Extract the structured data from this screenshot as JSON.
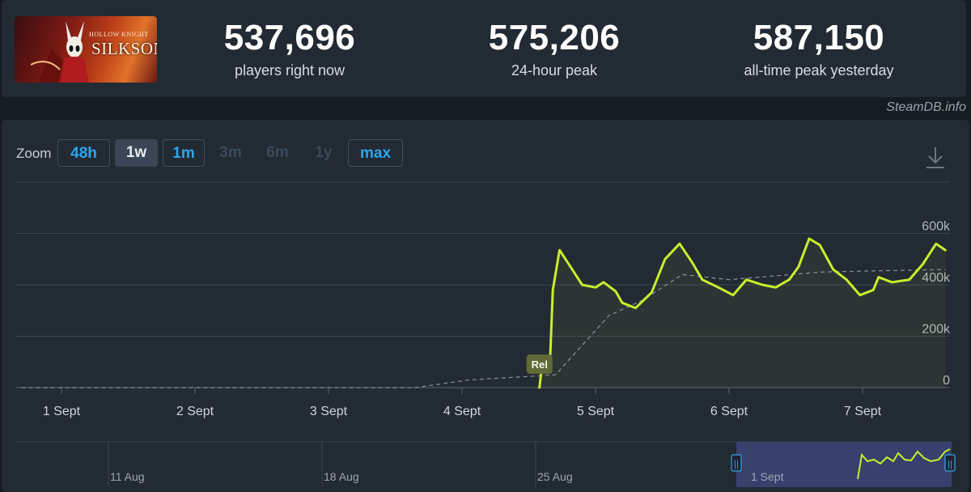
{
  "header": {
    "game_logo": {
      "title_small": "HOLLOW KNIGHT",
      "title_main": "SILKSONG"
    },
    "stats": [
      {
        "value": "537,696",
        "label": "players right now"
      },
      {
        "value": "575,206",
        "label": "24-hour peak"
      },
      {
        "value": "587,150",
        "label": "all-time peak yesterday"
      }
    ],
    "source": "SteamDB.info"
  },
  "zoom": {
    "label": "Zoom",
    "options": [
      {
        "label": "48h",
        "state": "enabled"
      },
      {
        "label": "1w",
        "state": "selected"
      },
      {
        "label": "1m",
        "state": "enabled"
      },
      {
        "label": "3m",
        "state": "disabled"
      },
      {
        "label": "6m",
        "state": "disabled"
      },
      {
        "label": "1y",
        "state": "disabled"
      },
      {
        "label": "max",
        "state": "enabled"
      }
    ],
    "download_icon": "download-icon"
  },
  "colors": {
    "line": "#c6f02b",
    "trend": "#8a939c",
    "grid": "#3a4552",
    "accent": "#2ea6ee"
  },
  "chart_data": {
    "type": "line",
    "x_ticks": [
      "1 Sept",
      "2 Sept",
      "3 Sept",
      "4 Sept",
      "5 Sept",
      "6 Sept",
      "7 Sept"
    ],
    "y_ticks": [
      "0",
      "200k",
      "400k",
      "600k"
    ],
    "ylim": [
      0,
      800000
    ],
    "grid": true,
    "annotation": {
      "label": "Rel",
      "day": 4.58
    },
    "series": [
      {
        "points": [
          [
            4.58,
            0
          ],
          [
            4.6,
            90000
          ],
          [
            4.66,
            115000
          ],
          [
            4.68,
            380000
          ],
          [
            4.73,
            535000
          ],
          [
            4.8,
            480000
          ],
          [
            4.9,
            400000
          ],
          [
            5.0,
            390000
          ],
          [
            5.06,
            410000
          ],
          [
            5.15,
            375000
          ],
          [
            5.2,
            330000
          ],
          [
            5.3,
            310000
          ],
          [
            5.42,
            370000
          ],
          [
            5.52,
            500000
          ],
          [
            5.63,
            560000
          ],
          [
            5.72,
            490000
          ],
          [
            5.8,
            420000
          ],
          [
            5.92,
            390000
          ],
          [
            6.03,
            360000
          ],
          [
            6.13,
            420000
          ],
          [
            6.25,
            400000
          ],
          [
            6.35,
            390000
          ],
          [
            6.45,
            420000
          ],
          [
            6.52,
            470000
          ],
          [
            6.6,
            580000
          ],
          [
            6.68,
            555000
          ],
          [
            6.78,
            460000
          ],
          [
            6.88,
            420000
          ],
          [
            6.98,
            360000
          ],
          [
            7.08,
            380000
          ],
          [
            7.12,
            430000
          ],
          [
            7.22,
            410000
          ],
          [
            7.35,
            420000
          ],
          [
            7.45,
            480000
          ],
          [
            7.55,
            560000
          ],
          [
            7.62,
            535000
          ]
        ]
      },
      {
        "style": "dashed",
        "points": [
          [
            0.7,
            0
          ],
          [
            3.0,
            0
          ],
          [
            3.65,
            0
          ],
          [
            4.05,
            30000
          ],
          [
            4.55,
            45000
          ],
          [
            4.7,
            50000
          ],
          [
            5.1,
            280000
          ],
          [
            5.35,
            340000
          ],
          [
            5.65,
            440000
          ],
          [
            6.0,
            420000
          ],
          [
            6.7,
            450000
          ],
          [
            7.62,
            460000
          ]
        ]
      }
    ]
  },
  "navigator": {
    "labels": [
      "11 Aug",
      "18 Aug",
      "25 Aug",
      "1 Sept"
    ],
    "handle_left": "||",
    "handle_right": "||"
  }
}
